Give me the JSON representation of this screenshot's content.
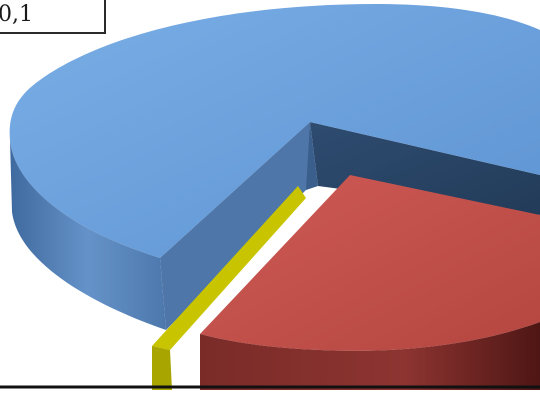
{
  "chart_data": {
    "type": "pie",
    "style": "3d-exploded",
    "title": "",
    "slices": [
      {
        "color": "#6a9fdb",
        "side_color": "#5581b8"
      },
      {
        "color": "#c0504d",
        "side_color": "#8e3533"
      },
      {
        "color": "#c8c400",
        "side_color": "#a4a000"
      },
      {
        "color": "#2c4a6e",
        "side_color": "#1d3350"
      }
    ],
    "data_labels": [
      "0,1"
    ],
    "legend": "none"
  }
}
